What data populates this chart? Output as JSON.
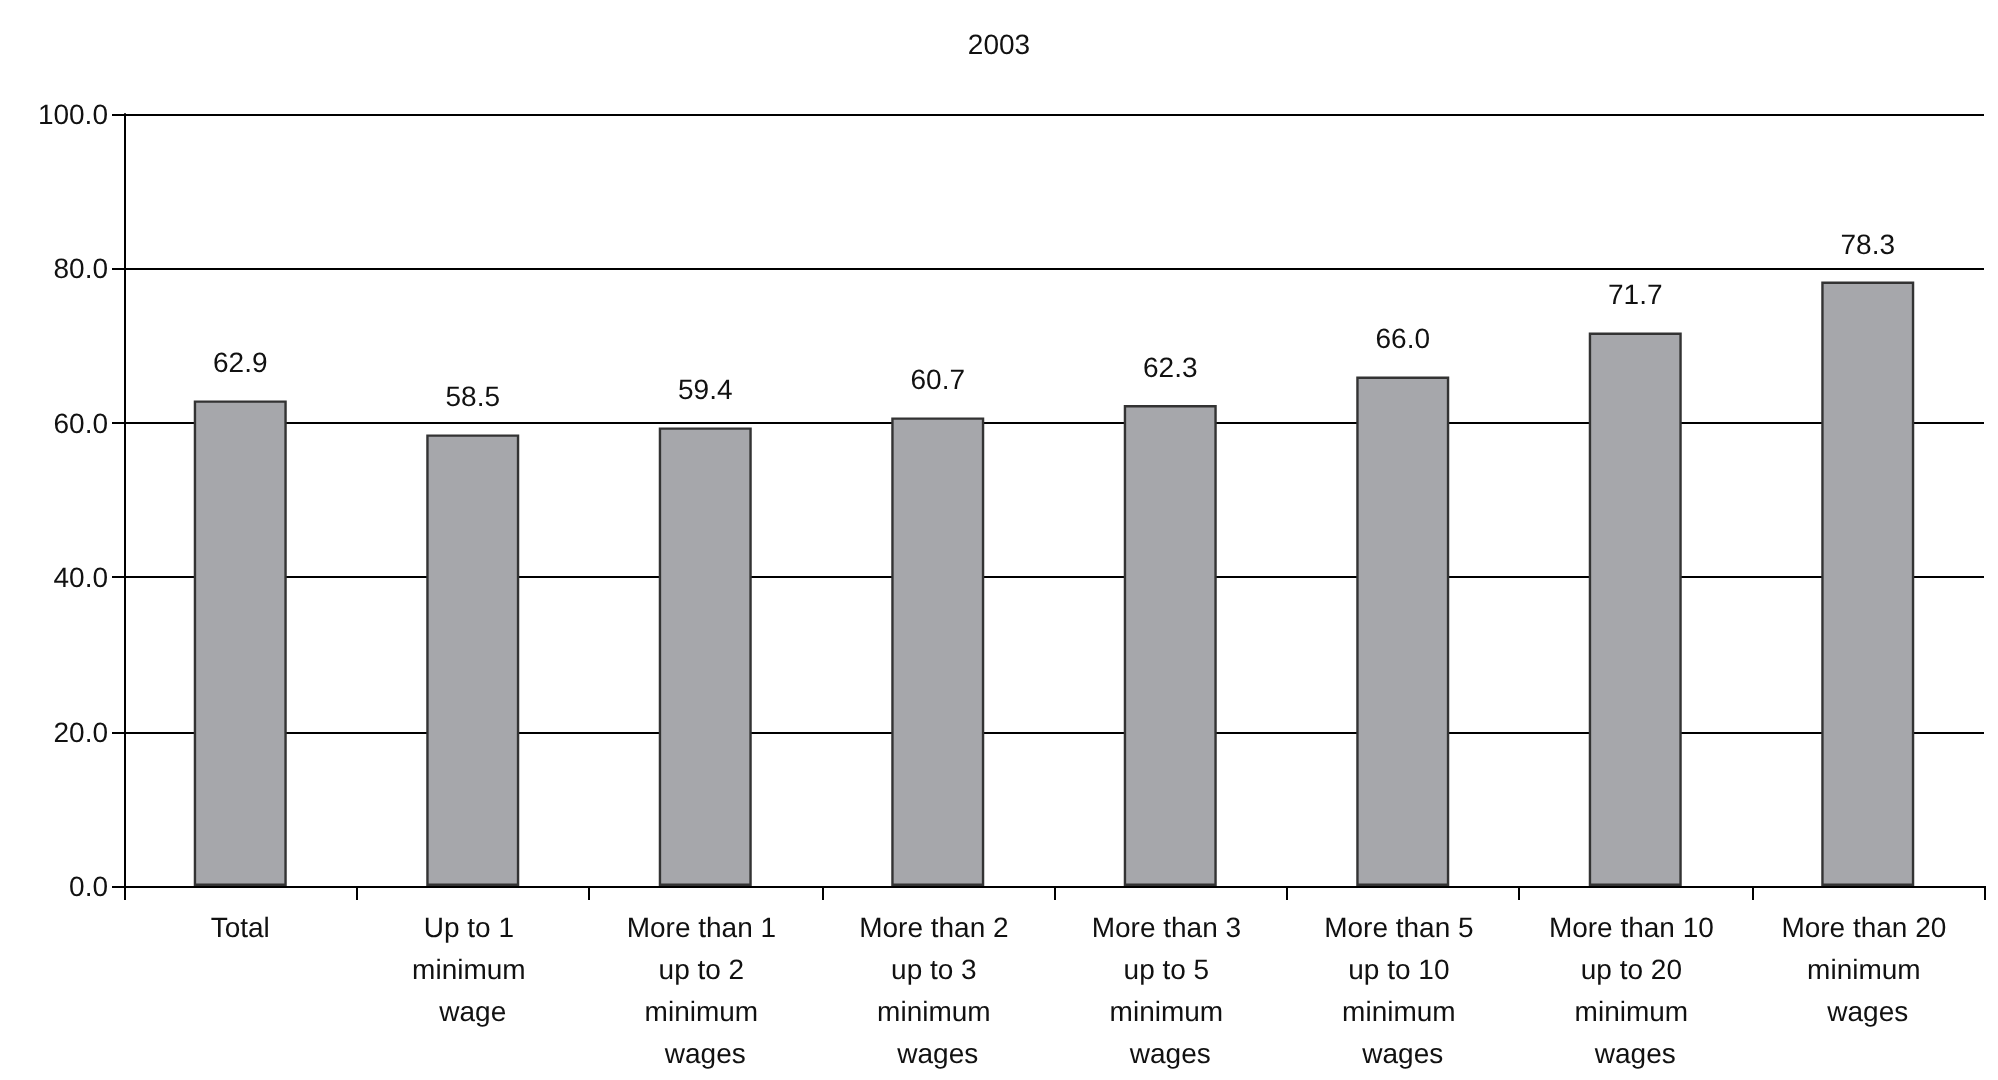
{
  "chart_data": {
    "type": "bar",
    "title": "2003",
    "categories": [
      "Total",
      "Up to 1 minimum wage",
      "More than 1 up to 2 minimum wages",
      "More than 2 up to 3 minimum wages",
      "More than 3 up to 5 minimum wages",
      "More than 5 up to 10 minimum wages",
      "More than 10 up to 20 minimum wages",
      "More than 20 minimum wages"
    ],
    "values": [
      62.9,
      58.5,
      59.4,
      60.7,
      62.3,
      66.0,
      71.7,
      78.3
    ],
    "value_labels": [
      "62.9",
      "58.5",
      "59.4",
      "60.7",
      "62.3",
      "66.0",
      "71.7",
      "78.3"
    ],
    "color": "#a6a7ab",
    "ylim": [
      0,
      100
    ],
    "yticks": [
      {
        "value": 0,
        "label": "0.0"
      },
      {
        "value": 20,
        "label": "20.0"
      },
      {
        "value": 40,
        "label": "40.0"
      },
      {
        "value": 60,
        "label": "60.0"
      },
      {
        "value": 80,
        "label": "80.0"
      },
      {
        "value": 100,
        "label": "100.0"
      }
    ],
    "grid": "y"
  }
}
